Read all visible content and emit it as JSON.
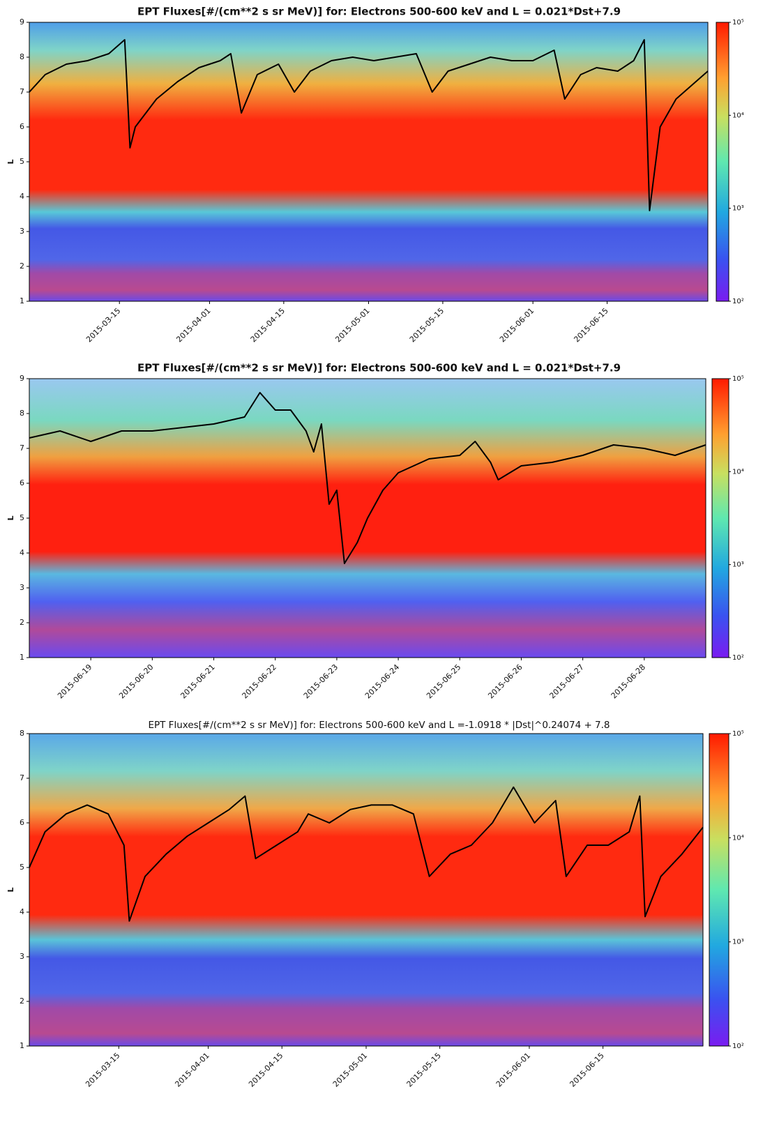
{
  "chart_data": [
    {
      "type": "line",
      "title": "EPT Fluxes[#/(cm**2 s sr MeV)] for: Electrons 500-600 keV and L = 0.021*Dst+7.9",
      "y_label": "L",
      "color": "#000000",
      "xlim": [
        "2015-02-26",
        "2015-07-04"
      ],
      "xticks": [
        "2015-03-15",
        "2015-04-01",
        "2015-04-15",
        "2015-05-01",
        "2015-05-15",
        "2015-06-01",
        "2015-06-15"
      ],
      "ylim": [
        1,
        9
      ],
      "yticks": [
        1,
        2,
        3,
        4,
        5,
        6,
        7,
        8,
        9
      ],
      "x": [
        "2015-02-26",
        "2015-03-01",
        "2015-03-05",
        "2015-03-09",
        "2015-03-13",
        "2015-03-16",
        "2015-03-17",
        "2015-03-18",
        "2015-03-22",
        "2015-03-26",
        "2015-03-30",
        "2015-04-03",
        "2015-04-05",
        "2015-04-07",
        "2015-04-10",
        "2015-04-14",
        "2015-04-17",
        "2015-04-20",
        "2015-04-24",
        "2015-04-28",
        "2015-05-02",
        "2015-05-06",
        "2015-05-10",
        "2015-05-13",
        "2015-05-16",
        "2015-05-20",
        "2015-05-24",
        "2015-05-28",
        "2015-06-01",
        "2015-06-05",
        "2015-06-07",
        "2015-06-10",
        "2015-06-13",
        "2015-06-17",
        "2015-06-20",
        "2015-06-22",
        "2015-06-23",
        "2015-06-25",
        "2015-06-28",
        "2015-07-01",
        "2015-07-04"
      ],
      "values": [
        7.0,
        7.5,
        7.8,
        7.9,
        8.1,
        8.5,
        5.4,
        6.0,
        6.8,
        7.3,
        7.7,
        7.9,
        8.1,
        6.4,
        7.5,
        7.8,
        7.0,
        7.6,
        7.9,
        8.0,
        7.9,
        8.0,
        8.1,
        7.0,
        7.6,
        7.8,
        8.0,
        7.9,
        7.9,
        8.2,
        6.8,
        7.5,
        7.7,
        7.6,
        7.9,
        8.5,
        3.6,
        6.0,
        6.8,
        7.2,
        7.6
      ],
      "colorbar": {
        "scale": "log",
        "lim": [
          100,
          100000
        ],
        "ticks": [
          {
            "value": 100,
            "label": "10²"
          },
          {
            "value": 1000,
            "label": "10³"
          },
          {
            "value": 10000,
            "label": "10⁴"
          },
          {
            "value": 100000,
            "label": "10⁵"
          }
        ]
      }
    },
    {
      "type": "line",
      "title": "EPT Fluxes[#/(cm**2 s sr MeV)] for: Electrons 500-600 keV and L = 0.021*Dst+7.9",
      "y_label": "L",
      "color": "#000000",
      "xlim": [
        "2015-06-18",
        "2015-06-29"
      ],
      "xticks": [
        "2015-06-19",
        "2015-06-20",
        "2015-06-21",
        "2015-06-22",
        "2015-06-23",
        "2015-06-24",
        "2015-06-25",
        "2015-06-26",
        "2015-06-27",
        "2015-06-28"
      ],
      "ylim": [
        1,
        9
      ],
      "yticks": [
        1,
        2,
        3,
        4,
        5,
        6,
        7,
        8,
        9
      ],
      "x": [
        "2015-06-18T00:00",
        "2015-06-18T12:00",
        "2015-06-19T00:00",
        "2015-06-19T12:00",
        "2015-06-20T00:00",
        "2015-06-20T12:00",
        "2015-06-21T00:00",
        "2015-06-21T12:00",
        "2015-06-21T18:00",
        "2015-06-22T00:00",
        "2015-06-22T06:00",
        "2015-06-22T12:00",
        "2015-06-22T15:00",
        "2015-06-22T18:00",
        "2015-06-22T21:00",
        "2015-06-23T00:00",
        "2015-06-23T03:00",
        "2015-06-23T08:00",
        "2015-06-23T12:00",
        "2015-06-23T18:00",
        "2015-06-24T00:00",
        "2015-06-24T12:00",
        "2015-06-25T00:00",
        "2015-06-25T06:00",
        "2015-06-25T12:00",
        "2015-06-25T15:00",
        "2015-06-26T00:00",
        "2015-06-26T12:00",
        "2015-06-27T00:00",
        "2015-06-27T12:00",
        "2015-06-28T00:00",
        "2015-06-28T12:00",
        "2015-06-29T00:00"
      ],
      "values": [
        7.3,
        7.5,
        7.2,
        7.5,
        7.5,
        7.6,
        7.7,
        7.9,
        8.6,
        8.1,
        8.1,
        7.5,
        6.9,
        7.7,
        5.4,
        5.8,
        3.7,
        4.3,
        5.0,
        5.8,
        6.3,
        6.7,
        6.8,
        7.2,
        6.6,
        6.1,
        6.5,
        6.6,
        6.8,
        7.1,
        7.0,
        6.8,
        7.1
      ],
      "colorbar": {
        "scale": "log",
        "lim": [
          100,
          100000
        ],
        "ticks": [
          {
            "value": 100,
            "label": "10²"
          },
          {
            "value": 1000,
            "label": "10³"
          },
          {
            "value": 10000,
            "label": "10⁴"
          },
          {
            "value": 100000,
            "label": "10⁵"
          }
        ]
      }
    },
    {
      "type": "line",
      "title": "EPT Fluxes[#/(cm**2 s sr MeV)] for: Electrons 500-600 keV and L =-1.0918 * |Dst|^0.24074 + 7.8",
      "y_label": "L",
      "color": "#000000",
      "xlim": [
        "2015-02-26",
        "2015-07-04"
      ],
      "xticks": [
        "2015-03-15",
        "2015-04-01",
        "2015-04-15",
        "2015-05-01",
        "2015-05-15",
        "2015-06-01",
        "2015-06-15"
      ],
      "ylim": [
        1,
        8
      ],
      "yticks": [
        1,
        2,
        3,
        4,
        5,
        6,
        7,
        8
      ],
      "x": [
        "2015-02-26",
        "2015-03-01",
        "2015-03-05",
        "2015-03-09",
        "2015-03-13",
        "2015-03-16",
        "2015-03-17",
        "2015-03-20",
        "2015-03-24",
        "2015-03-28",
        "2015-04-01",
        "2015-04-05",
        "2015-04-08",
        "2015-04-10",
        "2015-04-14",
        "2015-04-18",
        "2015-04-20",
        "2015-04-24",
        "2015-04-28",
        "2015-05-02",
        "2015-05-06",
        "2015-05-10",
        "2015-05-13",
        "2015-05-17",
        "2015-05-21",
        "2015-05-25",
        "2015-05-29",
        "2015-06-02",
        "2015-06-06",
        "2015-06-08",
        "2015-06-12",
        "2015-06-16",
        "2015-06-20",
        "2015-06-22",
        "2015-06-23",
        "2015-06-26",
        "2015-06-30",
        "2015-07-04"
      ],
      "values": [
        5.0,
        5.8,
        6.2,
        6.4,
        6.2,
        5.5,
        3.8,
        4.8,
        5.3,
        5.7,
        6.0,
        6.3,
        6.6,
        5.2,
        5.5,
        5.8,
        6.2,
        6.0,
        6.3,
        6.4,
        6.4,
        6.2,
        4.8,
        5.3,
        5.5,
        6.0,
        6.8,
        6.0,
        6.5,
        4.8,
        5.5,
        5.5,
        5.8,
        6.6,
        3.9,
        4.8,
        5.3,
        5.9
      ],
      "colorbar": {
        "scale": "log",
        "lim": [
          100,
          100000
        ],
        "ticks": [
          {
            "value": 100,
            "label": "10²"
          },
          {
            "value": 1000,
            "label": "10³"
          },
          {
            "value": 10000,
            "label": "10⁴"
          },
          {
            "value": 100000,
            "label": "10⁵"
          }
        ]
      }
    }
  ]
}
